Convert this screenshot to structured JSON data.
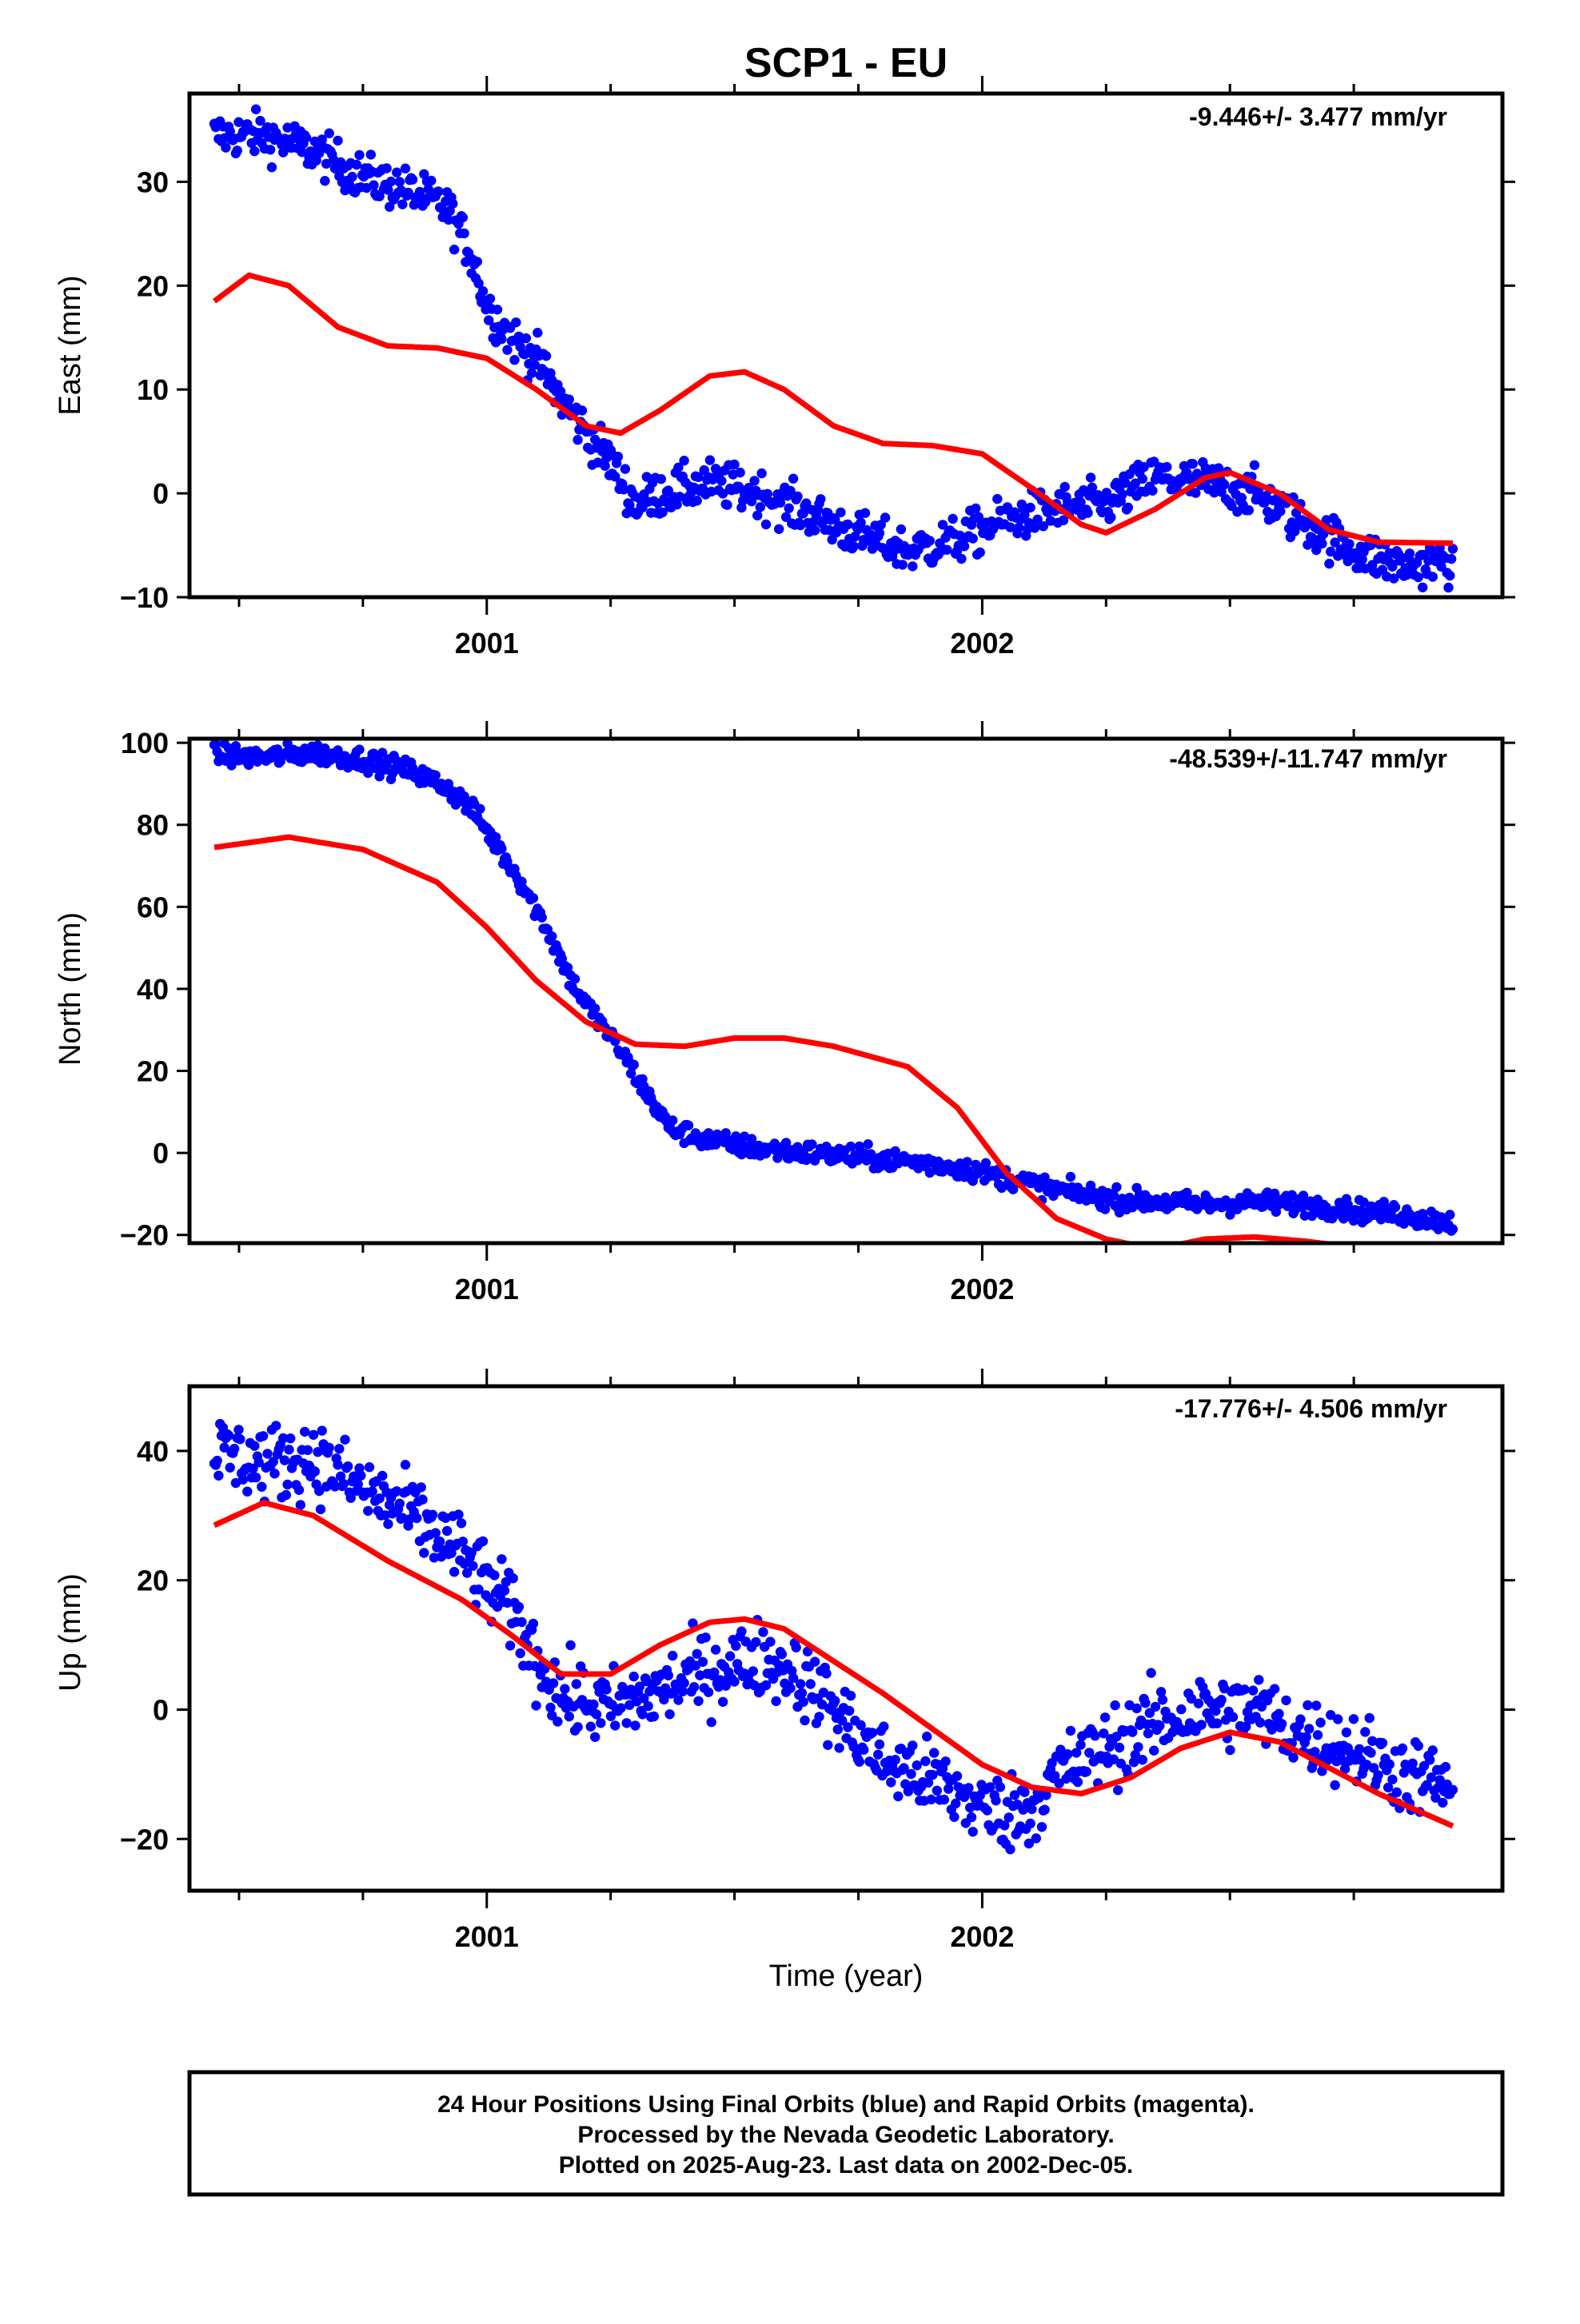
{
  "title": "SCP1 - EU",
  "xlabel": "Time (year)",
  "footer": {
    "line1": "24 Hour Positions Using Final Orbits (blue) and Rapid Orbits (magenta).",
    "line2": "Processed by the Nevada Geodetic Laboratory.",
    "line3": "Plotted on 2025-Aug-23. Last data on 2002-Dec-05."
  },
  "colors": {
    "points": "#0000ff",
    "model": "#ff0000",
    "frame": "#000000"
  },
  "chart_data": [
    {
      "type": "scatter",
      "ylabel": "East (mm)",
      "rate": "-9.446+/- 3.477 mm/yr",
      "xlim": [
        2000.4,
        2003.05
      ],
      "ylim": [
        -10,
        38.5
      ],
      "xticks": [
        "2001",
        "2002"
      ],
      "yticks": [
        -10,
        0,
        10,
        20,
        30
      ],
      "observations": {
        "x": [
          2000.45,
          2000.55,
          2000.65,
          2000.75,
          2000.85,
          2000.92,
          2000.97,
          2001.0,
          2001.05,
          2001.1,
          2001.15,
          2001.2,
          2001.25,
          2001.3,
          2001.35,
          2001.45,
          2001.55,
          2001.65,
          2001.75,
          2001.85,
          2001.95,
          2002.05,
          2002.15,
          2002.25,
          2002.35,
          2002.45,
          2002.55,
          2002.65,
          2002.75,
          2002.85,
          2002.95
        ],
        "y": [
          34.5,
          34.5,
          33,
          30.5,
          29,
          27.5,
          23,
          18,
          15,
          13,
          9,
          6,
          3,
          -1,
          0,
          1,
          0,
          -2,
          -4,
          -5.5,
          -4.5,
          -2.5,
          -1.5,
          -1,
          1.5,
          1,
          0,
          -3,
          -5.5,
          -7,
          -6.5
        ]
      },
      "model": {
        "x": [
          2000.45,
          2000.52,
          2000.6,
          2000.7,
          2000.8,
          2000.9,
          2001.0,
          2001.1,
          2001.2,
          2001.27,
          2001.35,
          2001.45,
          2001.52,
          2001.6,
          2001.7,
          2001.8,
          2001.9,
          2002.0,
          2002.1,
          2002.2,
          2002.25,
          2002.35,
          2002.45,
          2002.5,
          2002.6,
          2002.7,
          2002.8,
          2002.95
        ],
        "y": [
          18.5,
          21,
          20,
          16,
          14.2,
          14,
          13,
          10,
          6.5,
          5.8,
          8,
          11.3,
          11.7,
          10,
          6.5,
          4.8,
          4.6,
          3.8,
          0.5,
          -3,
          -3.8,
          -1.5,
          1.5,
          2,
          0,
          -3.5,
          -4.7,
          -4.8
        ]
      }
    },
    {
      "type": "scatter",
      "ylabel": "North (mm)",
      "rate": "-48.539+/-11.747 mm/yr",
      "xlim": [
        2000.4,
        2003.05
      ],
      "ylim": [
        -22,
        101
      ],
      "xticks": [
        "2001",
        "2002"
      ],
      "yticks": [
        -20,
        0,
        20,
        40,
        60,
        80,
        100
      ],
      "observations": {
        "x": [
          2000.45,
          2000.55,
          2000.65,
          2000.75,
          2000.85,
          2000.92,
          2000.97,
          2001.02,
          2001.07,
          2001.12,
          2001.17,
          2001.22,
          2001.27,
          2001.32,
          2001.37,
          2001.45,
          2001.55,
          2001.65,
          2001.75,
          2001.85,
          2001.95,
          2002.05,
          2002.15,
          2002.25,
          2002.35,
          2002.45,
          2002.55,
          2002.65,
          2002.75,
          2002.85,
          2002.95
        ],
        "y": [
          97,
          96.5,
          97.5,
          96,
          93,
          89,
          84,
          75,
          66,
          55,
          42,
          33,
          25,
          15,
          6,
          3,
          1,
          0,
          -1,
          -2,
          -3.5,
          -6,
          -9,
          -11,
          -12,
          -12.5,
          -12,
          -12.5,
          -14,
          -15,
          -17
        ]
      },
      "model": {
        "x": [
          2000.45,
          2000.6,
          2000.75,
          2000.9,
          2001.0,
          2001.1,
          2001.2,
          2001.3,
          2001.4,
          2001.5,
          2001.6,
          2001.7,
          2001.85,
          2001.95,
          2002.05,
          2002.15,
          2002.25,
          2002.35,
          2002.45,
          2002.55,
          2002.65,
          2002.75
        ],
        "y": [
          74.5,
          77,
          74,
          66,
          55,
          42,
          32,
          26.5,
          26,
          28,
          28,
          26,
          21,
          11,
          -5,
          -16,
          -21,
          -23.5,
          -21,
          -20.5,
          -21.5,
          -23
        ]
      }
    },
    {
      "type": "scatter",
      "ylabel": "Up (mm)",
      "rate": "-17.776+/- 4.506 mm/yr",
      "xlim": [
        2000.4,
        2003.05
      ],
      "ylim": [
        -28,
        50
      ],
      "xticks": [
        "2001",
        "2002"
      ],
      "yticks": [
        -20,
        0,
        20,
        40
      ],
      "observations": {
        "x": [
          2000.45,
          2000.55,
          2000.65,
          2000.75,
          2000.85,
          2000.95,
          2001.05,
          2001.1,
          2001.15,
          2001.2,
          2001.25,
          2001.35,
          2001.45,
          2001.55,
          2001.62,
          2001.7,
          2001.8,
          2001.9,
          2002.0,
          2002.05,
          2002.1,
          2002.15,
          2002.25,
          2002.35,
          2002.45,
          2002.55,
          2002.65,
          2002.75,
          2002.85,
          2002.95
        ],
        "y": [
          40,
          38,
          39,
          34,
          30,
          24,
          15,
          8,
          2,
          1,
          0,
          3,
          6,
          8,
          6,
          0,
          -8,
          -11,
          -15,
          -16,
          -15,
          -10,
          -6,
          -2,
          0,
          0,
          -4,
          -6,
          -10,
          -12
        ]
      },
      "model": {
        "x": [
          2000.45,
          2000.55,
          2000.65,
          2000.8,
          2000.95,
          2001.05,
          2001.15,
          2001.25,
          2001.35,
          2001.45,
          2001.52,
          2001.6,
          2001.7,
          2001.8,
          2001.9,
          2002.0,
          2002.1,
          2002.2,
          2002.3,
          2002.4,
          2002.5,
          2002.6,
          2002.7,
          2002.8,
          2002.95
        ],
        "y": [
          28.5,
          32,
          30,
          23,
          17,
          11.5,
          5.5,
          5.5,
          10,
          13.5,
          14,
          12.5,
          7.5,
          2.5,
          -3,
          -8.5,
          -12,
          -13,
          -10.5,
          -6,
          -3.5,
          -5,
          -9,
          -13,
          -18
        ]
      }
    }
  ]
}
